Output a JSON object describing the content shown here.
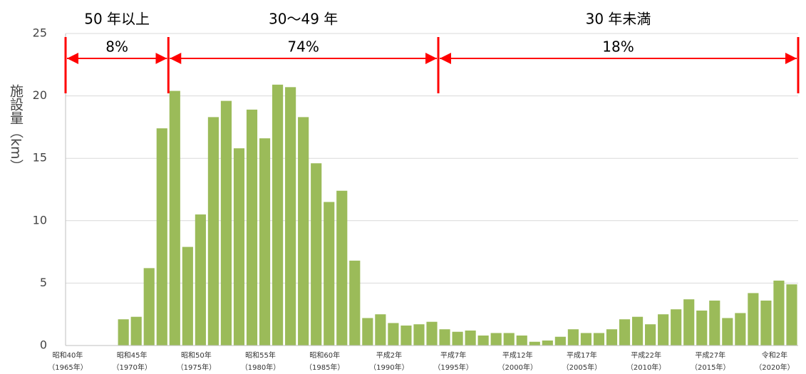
{
  "chart_data": {
    "type": "bar",
    "y_label": "施設量（km）",
    "color": "#9bbb59",
    "grid": true,
    "ylim": [
      0,
      25
    ],
    "yticks": [
      0,
      5,
      10,
      15,
      20,
      25
    ],
    "categories": [
      "昭和40年",
      null,
      null,
      null,
      null,
      "昭和45年",
      null,
      null,
      null,
      null,
      "昭和50年",
      null,
      null,
      null,
      null,
      "昭和55年",
      null,
      null,
      null,
      null,
      "昭和60年",
      null,
      null,
      null,
      null,
      "平成2年",
      null,
      null,
      null,
      null,
      "平成7年",
      null,
      null,
      null,
      null,
      "平成12年",
      null,
      null,
      null,
      null,
      "平成17年",
      null,
      null,
      null,
      null,
      "平成22年",
      null,
      null,
      null,
      null,
      "平成27年",
      null,
      null,
      null,
      null,
      "令和2年",
      null
    ],
    "category_years": [
      "（1965年）",
      null,
      null,
      null,
      null,
      "（1970年）",
      null,
      null,
      null,
      null,
      "（1975年）",
      null,
      null,
      null,
      null,
      "（1980年）",
      null,
      null,
      null,
      null,
      "（1985年）",
      null,
      null,
      null,
      null,
      "（1990年）",
      null,
      null,
      null,
      null,
      "（1995年）",
      null,
      null,
      null,
      null,
      "（2000年）",
      null,
      null,
      null,
      null,
      "（2005年）",
      null,
      null,
      null,
      null,
      "（2010年）",
      null,
      null,
      null,
      null,
      "（2015年）",
      null,
      null,
      null,
      null,
      "（2020年）",
      null
    ],
    "values": [
      0,
      0,
      0,
      0,
      2.1,
      2.3,
      6.2,
      17.4,
      20.4,
      7.9,
      10.5,
      18.3,
      19.6,
      15.8,
      18.9,
      16.6,
      20.9,
      20.7,
      18.3,
      14.6,
      11.5,
      12.4,
      6.8,
      2.2,
      2.5,
      1.8,
      1.6,
      1.7,
      1.9,
      1.3,
      1.1,
      1.2,
      0.8,
      1.0,
      1.0,
      0.8,
      0.3,
      0.4,
      0.7,
      1.3,
      1.0,
      1.0,
      1.3,
      2.1,
      2.3,
      1.7,
      2.5,
      2.9,
      3.7,
      2.8,
      3.6,
      2.2,
      2.6,
      4.2,
      3.6,
      5.2,
      4.9
    ],
    "annotations": [
      {
        "label": "50 年以上",
        "share": "8%"
      },
      {
        "label": "30〜49 年",
        "share": "74%"
      },
      {
        "label": "30 年未満",
        "share": "18%"
      }
    ]
  }
}
